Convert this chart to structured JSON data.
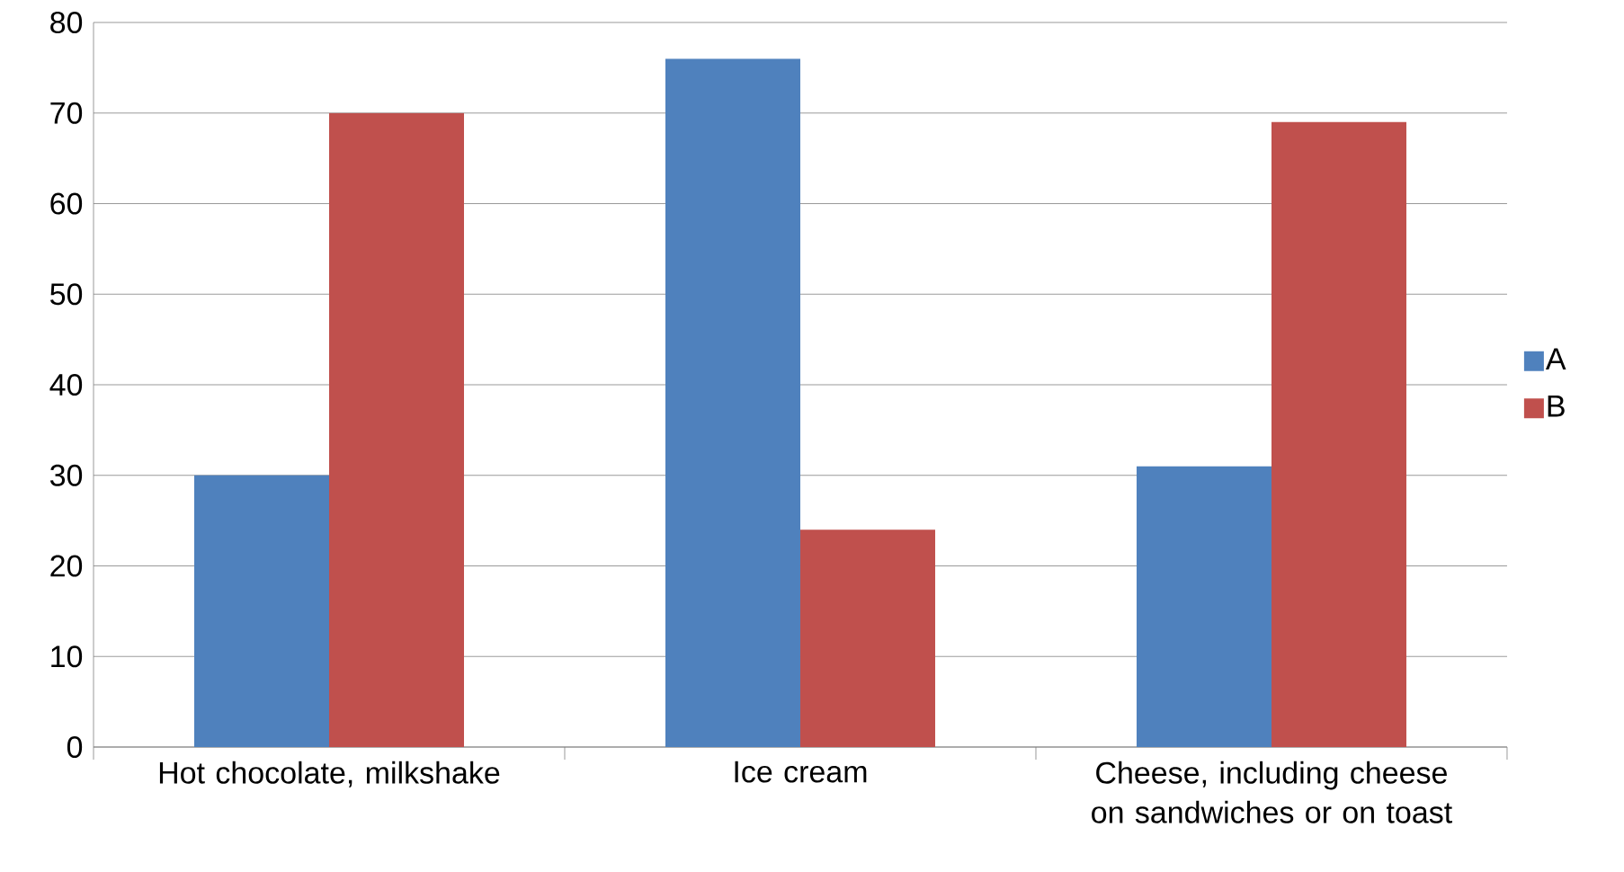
{
  "chart_data": {
    "type": "bar",
    "categories": [
      "Hot chocolate, milkshake",
      "Ice cream",
      "Cheese, including cheese on sandwiches or on toast"
    ],
    "series": [
      {
        "name": "A",
        "color": "#4f81bd",
        "values": [
          30,
          76,
          31
        ]
      },
      {
        "name": "B",
        "color": "#c0504d",
        "values": [
          70,
          24,
          69
        ]
      }
    ],
    "ylim": [
      0,
      80
    ],
    "yticks": [
      0,
      10,
      20,
      30,
      40,
      50,
      60,
      70,
      80
    ],
    "grid": "y",
    "legend": "right"
  }
}
